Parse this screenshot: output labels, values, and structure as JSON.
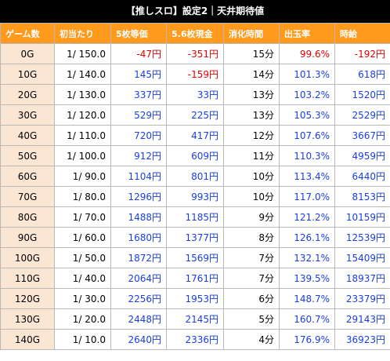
{
  "title": "【推しスロ】設定2｜天井期待値",
  "columns": [
    "ゲーム数",
    "初当たり",
    "5枚等価",
    "5.6枚現金",
    "消化時間",
    "出玉率",
    "時給"
  ],
  "colors": {
    "header_bg": "#ff9a1c",
    "first_col_bg": "#fbe5d3",
    "negative": "#e60000",
    "positive": "#1a3ee6"
  },
  "rows": [
    {
      "games": "0G",
      "hit": "1/ 150.0",
      "eq5": "-47円",
      "cash56": "-351円",
      "time": "15分",
      "rate": "99.6%",
      "hourly": "-192円",
      "neg": [
        true,
        true,
        true,
        true
      ]
    },
    {
      "games": "10G",
      "hit": "1/ 140.0",
      "eq5": "145円",
      "cash56": "-159円",
      "time": "14分",
      "rate": "101.3%",
      "hourly": "618円",
      "neg": [
        false,
        true,
        false,
        false
      ]
    },
    {
      "games": "20G",
      "hit": "1/ 130.0",
      "eq5": "337円",
      "cash56": "33円",
      "time": "13分",
      "rate": "103.2%",
      "hourly": "1520円",
      "neg": [
        false,
        false,
        false,
        false
      ]
    },
    {
      "games": "30G",
      "hit": "1/ 120.0",
      "eq5": "529円",
      "cash56": "225円",
      "time": "13分",
      "rate": "105.3%",
      "hourly": "2529円",
      "neg": [
        false,
        false,
        false,
        false
      ]
    },
    {
      "games": "40G",
      "hit": "1/ 110.0",
      "eq5": "720円",
      "cash56": "417円",
      "time": "12分",
      "rate": "107.6%",
      "hourly": "3667円",
      "neg": [
        false,
        false,
        false,
        false
      ]
    },
    {
      "games": "50G",
      "hit": "1/ 100.0",
      "eq5": "912円",
      "cash56": "609円",
      "time": "11分",
      "rate": "110.3%",
      "hourly": "4959円",
      "neg": [
        false,
        false,
        false,
        false
      ]
    },
    {
      "games": "60G",
      "hit": "1/ 90.0",
      "eq5": "1104円",
      "cash56": "801円",
      "time": "10分",
      "rate": "113.4%",
      "hourly": "6440円",
      "neg": [
        false,
        false,
        false,
        false
      ]
    },
    {
      "games": "70G",
      "hit": "1/ 80.0",
      "eq5": "1296円",
      "cash56": "993円",
      "time": "10分",
      "rate": "117.0%",
      "hourly": "8153円",
      "neg": [
        false,
        false,
        false,
        false
      ]
    },
    {
      "games": "80G",
      "hit": "1/ 70.0",
      "eq5": "1488円",
      "cash56": "1185円",
      "time": "9分",
      "rate": "121.2%",
      "hourly": "10159円",
      "neg": [
        false,
        false,
        false,
        false
      ]
    },
    {
      "games": "90G",
      "hit": "1/ 60.0",
      "eq5": "1680円",
      "cash56": "1377円",
      "time": "8分",
      "rate": "126.1%",
      "hourly": "12539円",
      "neg": [
        false,
        false,
        false,
        false
      ]
    },
    {
      "games": "100G",
      "hit": "1/ 50.0",
      "eq5": "1872円",
      "cash56": "1569円",
      "time": "7分",
      "rate": "132.1%",
      "hourly": "15409円",
      "neg": [
        false,
        false,
        false,
        false
      ]
    },
    {
      "games": "110G",
      "hit": "1/ 40.0",
      "eq5": "2064円",
      "cash56": "1761円",
      "time": "7分",
      "rate": "139.5%",
      "hourly": "18937円",
      "neg": [
        false,
        false,
        false,
        false
      ]
    },
    {
      "games": "120G",
      "hit": "1/ 30.0",
      "eq5": "2256円",
      "cash56": "1953円",
      "time": "6分",
      "rate": "148.7%",
      "hourly": "23379円",
      "neg": [
        false,
        false,
        false,
        false
      ]
    },
    {
      "games": "130G",
      "hit": "1/ 20.0",
      "eq5": "2448円",
      "cash56": "2145円",
      "time": "5分",
      "rate": "160.7%",
      "hourly": "29143円",
      "neg": [
        false,
        false,
        false,
        false
      ]
    },
    {
      "games": "140G",
      "hit": "1/ 10.0",
      "eq5": "2640円",
      "cash56": "2336円",
      "time": "4分",
      "rate": "176.9%",
      "hourly": "36923円",
      "neg": [
        false,
        false,
        false,
        false
      ]
    }
  ]
}
